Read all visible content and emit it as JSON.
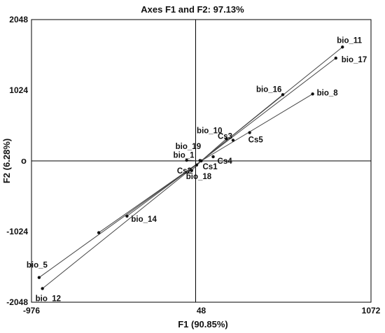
{
  "chart_data": {
    "type": "scatter",
    "title": "Axes F1 and F2: 97.13%",
    "xlabel": "F1 (90.85%)",
    "ylabel": "F2 (6.28%)",
    "ylabel_marker": "o",
    "xlim": [
      -976,
      1072
    ],
    "ylim": [
      -2048,
      2048
    ],
    "xticks": [
      -976,
      48,
      1072
    ],
    "yticks": [
      -2048,
      -1024,
      1024,
      2048
    ],
    "grid": false,
    "origin": [
      48,
      0
    ],
    "vectors": [
      {
        "name": "bio_11",
        "x": 900,
        "y": 1650
      },
      {
        "name": "bio_17",
        "x": 860,
        "y": 1490
      },
      {
        "name": "bio_16",
        "x": 540,
        "y": 960
      },
      {
        "name": "bio_8",
        "x": 720,
        "y": 970
      },
      {
        "name": "bio_10",
        "x": 200,
        "y": 320
      },
      {
        "name": "bio_19",
        "x": -40,
        "y": 10
      },
      {
        "name": "bio_1",
        "x": 40,
        "y": 5
      },
      {
        "name": "bio_18",
        "x": -10,
        "y": -140
      },
      {
        "name": "bio_14",
        "x": -400,
        "y": -800
      },
      {
        "name": "bio_5",
        "x": -930,
        "y": -1690
      },
      {
        "name": "bio_12",
        "x": -910,
        "y": -1850
      },
      {
        "name": "",
        "x": -570,
        "y": -1040
      }
    ],
    "points": [
      {
        "name": "Cs1",
        "x": 48,
        "y": 0
      },
      {
        "name": "Cs2",
        "x": 20,
        "y": -60
      },
      {
        "name": "Cs3",
        "x": 240,
        "y": 300
      },
      {
        "name": "Cs4",
        "x": 120,
        "y": 60
      },
      {
        "name": "Cs5",
        "x": 340,
        "y": 410
      }
    ],
    "labels": {
      "bio_11": {
        "name": "bio_11",
        "dx": -8,
        "dy": -6,
        "anchor": "start"
      },
      "bio_17": {
        "name": "bio_17",
        "dx": 8,
        "dy": 6,
        "anchor": "start"
      },
      "bio_16": {
        "name": "bio_16",
        "dx": -38,
        "dy": -4,
        "anchor": "start"
      },
      "bio_8": {
        "name": "bio_8",
        "dx": 6,
        "dy": 2,
        "anchor": "start"
      },
      "bio_10": {
        "name": "bio_10",
        "dx": -6,
        "dy": -8,
        "anchor": "end"
      },
      "bio_19": {
        "name": "bio_19",
        "dx": -16,
        "dy": -16,
        "anchor": "start"
      },
      "bio_1": {
        "name": "bio_1",
        "dx": -8,
        "dy": -4,
        "anchor": "end"
      },
      "bio_18": {
        "name": "bio_18",
        "dx": -8,
        "dy": 12,
        "anchor": "start"
      },
      "bio_14": {
        "name": "bio_14",
        "dx": 6,
        "dy": 8,
        "anchor": "start"
      },
      "bio_5": {
        "name": "bio_5",
        "dx": -18,
        "dy": -14,
        "anchor": "start"
      },
      "bio_12": {
        "name": "bio_12",
        "dx": -10,
        "dy": 18,
        "anchor": "start"
      },
      "Cs1": {
        "name": "Cs1",
        "dx": 2,
        "dy": 12,
        "anchor": "start"
      },
      "Cs2": {
        "name": "Cs2",
        "dx": -28,
        "dy": 12,
        "anchor": "start"
      },
      "Cs3": {
        "name": "Cs3",
        "dx": -22,
        "dy": -2,
        "anchor": "start"
      },
      "Cs4": {
        "name": "Cs4",
        "dx": 6,
        "dy": 10,
        "anchor": "start"
      },
      "Cs5": {
        "name": "Cs5",
        "dx": -2,
        "dy": 14,
        "anchor": "start"
      }
    }
  }
}
